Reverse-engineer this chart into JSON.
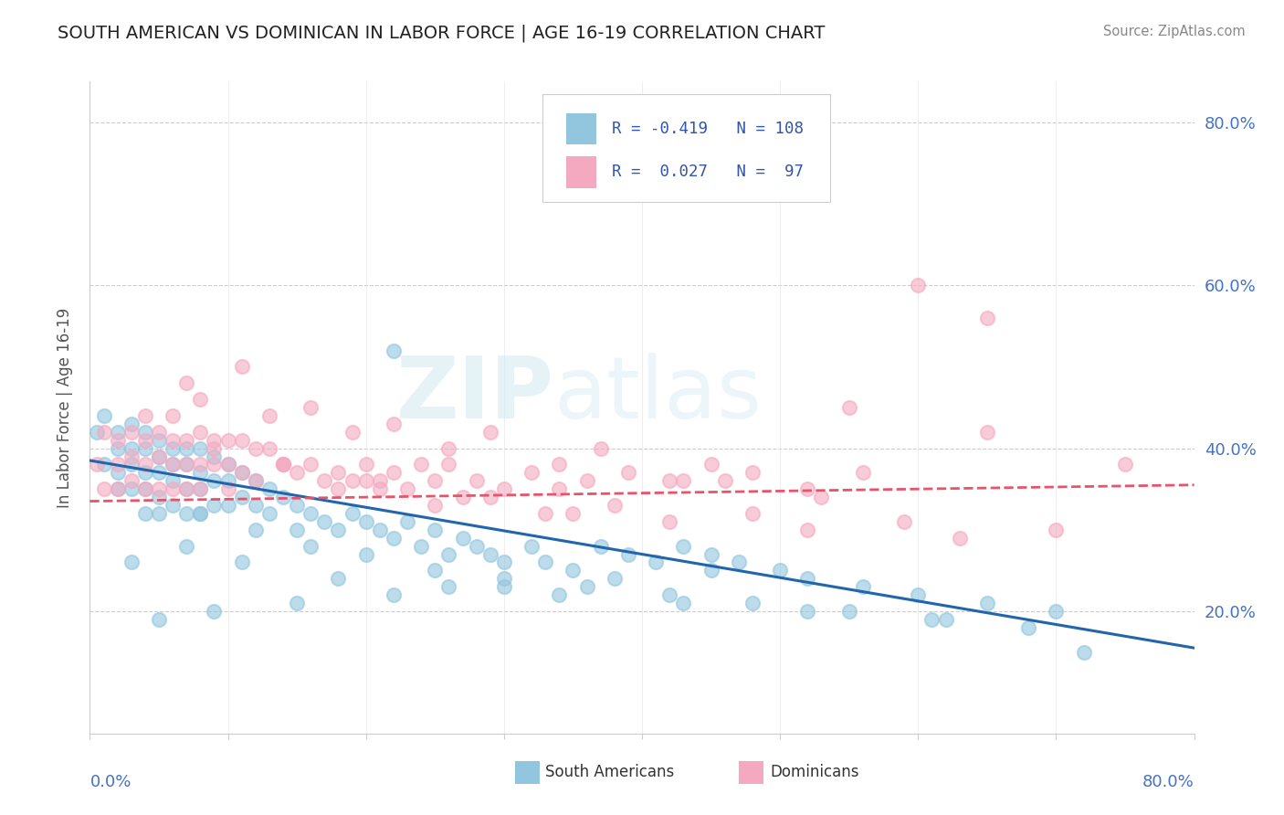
{
  "title": "SOUTH AMERICAN VS DOMINICAN IN LABOR FORCE | AGE 16-19 CORRELATION CHART",
  "source": "Source: ZipAtlas.com",
  "ylabel": "In Labor Force | Age 16-19",
  "right_yticks": [
    "20.0%",
    "40.0%",
    "60.0%",
    "80.0%"
  ],
  "right_ytick_vals": [
    0.2,
    0.4,
    0.6,
    0.8
  ],
  "xlim": [
    0.0,
    0.8
  ],
  "ylim": [
    0.05,
    0.85
  ],
  "color_blue": "#92c5de",
  "color_pink": "#f4a9c0",
  "color_blue_line": "#2166ac",
  "color_pink_line": "#e8536a",
  "watermark": "ZIPatlas",
  "sa_x": [
    0.005,
    0.01,
    0.01,
    0.02,
    0.02,
    0.02,
    0.02,
    0.03,
    0.03,
    0.03,
    0.03,
    0.04,
    0.04,
    0.04,
    0.04,
    0.04,
    0.05,
    0.05,
    0.05,
    0.05,
    0.05,
    0.06,
    0.06,
    0.06,
    0.06,
    0.07,
    0.07,
    0.07,
    0.07,
    0.08,
    0.08,
    0.08,
    0.08,
    0.09,
    0.09,
    0.09,
    0.1,
    0.1,
    0.1,
    0.11,
    0.11,
    0.12,
    0.12,
    0.13,
    0.13,
    0.14,
    0.15,
    0.15,
    0.16,
    0.17,
    0.18,
    0.19,
    0.2,
    0.21,
    0.22,
    0.22,
    0.23,
    0.24,
    0.25,
    0.26,
    0.27,
    0.28,
    0.29,
    0.3,
    0.32,
    0.33,
    0.35,
    0.37,
    0.39,
    0.41,
    0.43,
    0.45,
    0.47,
    0.5,
    0.52,
    0.56,
    0.6,
    0.65,
    0.7,
    0.08,
    0.12,
    0.16,
    0.2,
    0.25,
    0.3,
    0.36,
    0.42,
    0.48,
    0.55,
    0.62,
    0.68,
    0.45,
    0.38,
    0.3,
    0.22,
    0.15,
    0.09,
    0.05,
    0.03,
    0.07,
    0.11,
    0.18,
    0.26,
    0.34,
    0.43,
    0.52,
    0.61,
    0.72
  ],
  "sa_y": [
    0.42,
    0.44,
    0.38,
    0.42,
    0.4,
    0.37,
    0.35,
    0.43,
    0.4,
    0.38,
    0.35,
    0.42,
    0.4,
    0.37,
    0.35,
    0.32,
    0.41,
    0.39,
    0.37,
    0.34,
    0.32,
    0.4,
    0.38,
    0.36,
    0.33,
    0.4,
    0.38,
    0.35,
    0.32,
    0.4,
    0.37,
    0.35,
    0.32,
    0.39,
    0.36,
    0.33,
    0.38,
    0.36,
    0.33,
    0.37,
    0.34,
    0.36,
    0.33,
    0.35,
    0.32,
    0.34,
    0.33,
    0.3,
    0.32,
    0.31,
    0.3,
    0.32,
    0.31,
    0.3,
    0.52,
    0.29,
    0.31,
    0.28,
    0.3,
    0.27,
    0.29,
    0.28,
    0.27,
    0.26,
    0.28,
    0.26,
    0.25,
    0.28,
    0.27,
    0.26,
    0.28,
    0.27,
    0.26,
    0.25,
    0.24,
    0.23,
    0.22,
    0.21,
    0.2,
    0.32,
    0.3,
    0.28,
    0.27,
    0.25,
    0.24,
    0.23,
    0.22,
    0.21,
    0.2,
    0.19,
    0.18,
    0.25,
    0.24,
    0.23,
    0.22,
    0.21,
    0.2,
    0.19,
    0.26,
    0.28,
    0.26,
    0.24,
    0.23,
    0.22,
    0.21,
    0.2,
    0.19,
    0.15
  ],
  "dom_x": [
    0.005,
    0.01,
    0.01,
    0.02,
    0.02,
    0.02,
    0.03,
    0.03,
    0.03,
    0.04,
    0.04,
    0.04,
    0.05,
    0.05,
    0.05,
    0.06,
    0.06,
    0.06,
    0.07,
    0.07,
    0.07,
    0.08,
    0.08,
    0.08,
    0.09,
    0.09,
    0.1,
    0.1,
    0.1,
    0.11,
    0.11,
    0.12,
    0.12,
    0.13,
    0.14,
    0.15,
    0.16,
    0.17,
    0.18,
    0.19,
    0.2,
    0.21,
    0.22,
    0.23,
    0.24,
    0.25,
    0.26,
    0.28,
    0.3,
    0.32,
    0.34,
    0.36,
    0.39,
    0.42,
    0.45,
    0.48,
    0.52,
    0.56,
    0.6,
    0.65,
    0.04,
    0.07,
    0.11,
    0.16,
    0.22,
    0.29,
    0.37,
    0.46,
    0.55,
    0.65,
    0.75,
    0.08,
    0.13,
    0.19,
    0.26,
    0.34,
    0.43,
    0.53,
    0.14,
    0.21,
    0.29,
    0.38,
    0.48,
    0.59,
    0.7,
    0.18,
    0.25,
    0.33,
    0.42,
    0.52,
    0.63,
    0.06,
    0.09,
    0.14,
    0.2,
    0.27,
    0.35
  ],
  "dom_y": [
    0.38,
    0.42,
    0.35,
    0.41,
    0.38,
    0.35,
    0.42,
    0.39,
    0.36,
    0.41,
    0.38,
    0.35,
    0.42,
    0.39,
    0.35,
    0.41,
    0.38,
    0.35,
    0.41,
    0.38,
    0.35,
    0.42,
    0.38,
    0.35,
    0.41,
    0.38,
    0.41,
    0.38,
    0.35,
    0.41,
    0.37,
    0.4,
    0.36,
    0.4,
    0.38,
    0.37,
    0.38,
    0.36,
    0.37,
    0.36,
    0.38,
    0.35,
    0.37,
    0.35,
    0.38,
    0.36,
    0.38,
    0.36,
    0.35,
    0.37,
    0.35,
    0.36,
    0.37,
    0.36,
    0.38,
    0.37,
    0.35,
    0.37,
    0.6,
    0.56,
    0.44,
    0.48,
    0.5,
    0.45,
    0.43,
    0.42,
    0.4,
    0.36,
    0.45,
    0.42,
    0.38,
    0.46,
    0.44,
    0.42,
    0.4,
    0.38,
    0.36,
    0.34,
    0.38,
    0.36,
    0.34,
    0.33,
    0.32,
    0.31,
    0.3,
    0.35,
    0.33,
    0.32,
    0.31,
    0.3,
    0.29,
    0.44,
    0.4,
    0.38,
    0.36,
    0.34,
    0.32
  ],
  "trend_sa_x0": 0.0,
  "trend_sa_y0": 0.385,
  "trend_sa_x1": 0.8,
  "trend_sa_y1": 0.155,
  "trend_dom_x0": 0.0,
  "trend_dom_y0": 0.335,
  "trend_dom_x1": 0.8,
  "trend_dom_y1": 0.355
}
